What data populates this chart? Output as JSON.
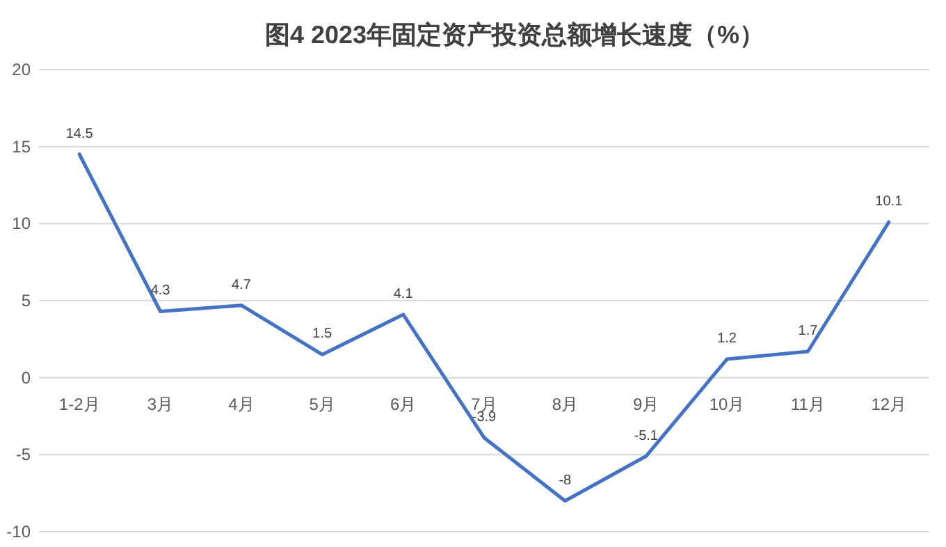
{
  "chart_data": {
    "type": "line",
    "title": "图4 2023年固定资产投资总额增长速度（%）",
    "categories": [
      "1-2月",
      "3月",
      "4月",
      "5月",
      "6月",
      "7月",
      "8月",
      "9月",
      "10月",
      "11月",
      "12月"
    ],
    "series": [
      {
        "color": "#4472c4",
        "values": [
          14.5,
          4.3,
          4.7,
          1.5,
          4.1,
          -3.9,
          -8,
          -5.1,
          1.2,
          1.7,
          10.1
        ]
      }
    ],
    "ylim": [
      -10,
      20
    ],
    "yticks": [
      -10,
      -5,
      0,
      5,
      10,
      15,
      20
    ],
    "grid": "y",
    "data_labels": true
  }
}
